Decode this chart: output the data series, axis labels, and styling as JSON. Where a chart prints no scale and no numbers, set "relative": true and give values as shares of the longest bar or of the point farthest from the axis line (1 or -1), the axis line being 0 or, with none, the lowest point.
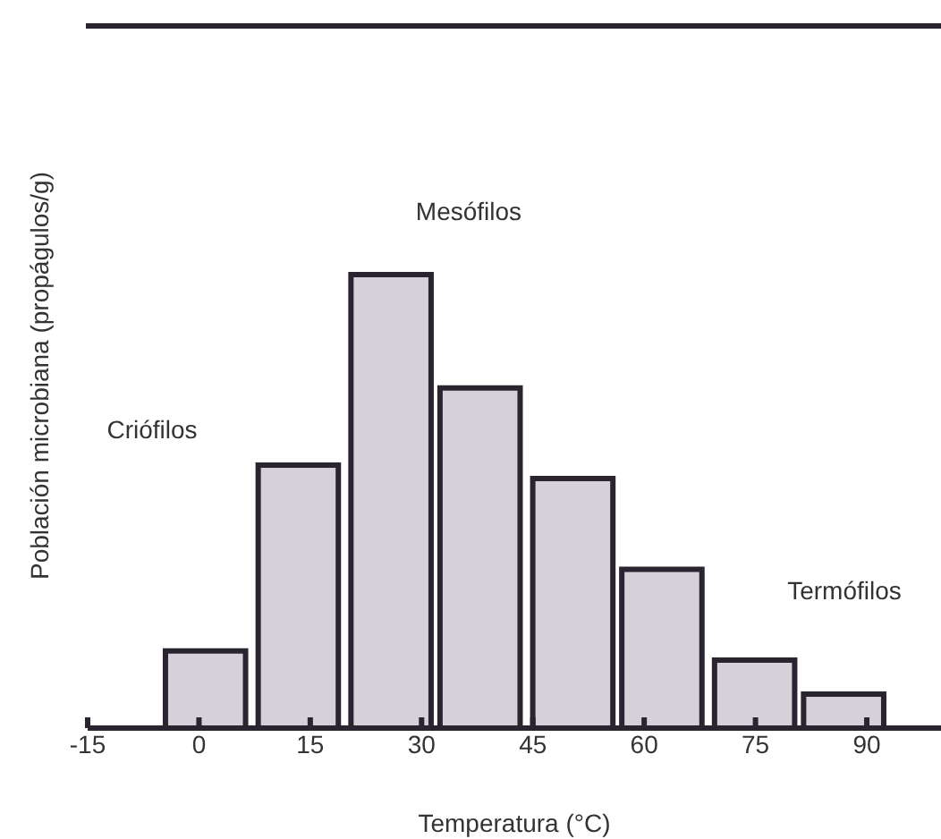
{
  "chart_data": {
    "type": "bar",
    "relative": true,
    "xlabel": "Temperatura (°C)",
    "ylabel": "Población microbiana (propágulos/g)",
    "x": [
      1,
      13.5,
      26,
      38,
      50.5,
      62.5,
      75,
      87
    ],
    "values": [
      0.17,
      0.58,
      1,
      0.75,
      0.55,
      0.35,
      0.15,
      0.075
    ],
    "color": "#d4d2d8",
    "xlim": [
      -15,
      100
    ],
    "xticks": [
      -15,
      0,
      15,
      30,
      45,
      60,
      75,
      90
    ],
    "annotations": [
      "Criófilos",
      "Mesófilos",
      "Termófilos"
    ]
  }
}
